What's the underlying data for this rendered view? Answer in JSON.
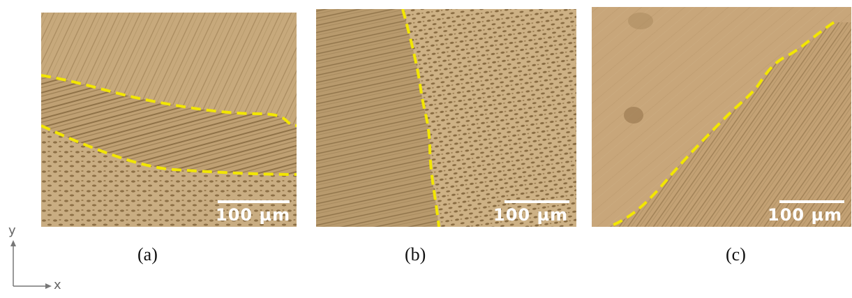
{
  "panels": [
    {
      "id": "a",
      "caption": "(a)",
      "scale_text": "100 µm"
    },
    {
      "id": "b",
      "caption": "(b)",
      "scale_text": "100 µm"
    },
    {
      "id": "c",
      "caption": "(c)",
      "scale_text": "100 µm"
    }
  ],
  "axes": {
    "y_label": "y",
    "x_label": "x"
  },
  "colors": {
    "boundary": "#f2e600",
    "metal_light": "#c9ab7e",
    "metal_dark": "#8a6e45",
    "scale": "#ffffff"
  }
}
